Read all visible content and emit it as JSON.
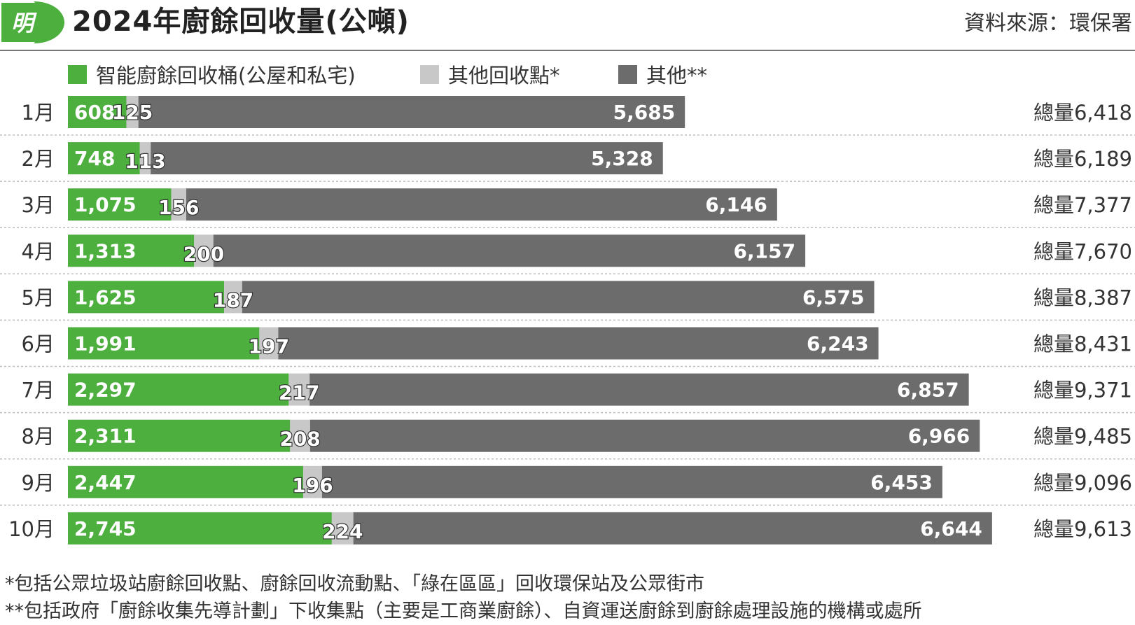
{
  "title": "2024年廚餘回收量(公噸)",
  "source": "資料來源：環保署",
  "logo_text": "明",
  "total_prefix": "總量",
  "colors": {
    "smart_bins": "#4caf3e",
    "other_points": "#c8c8c8",
    "others": "#6c6c6c",
    "divider": "#bdbdbd",
    "brand": "#4caf3e"
  },
  "chart_data": {
    "type": "bar",
    "orientation": "horizontal",
    "stacked": true,
    "title": "2024年廚餘回收量(公噸)",
    "categories": [
      "1月",
      "2月",
      "3月",
      "4月",
      "5月",
      "6月",
      "7月",
      "8月",
      "9月",
      "10月"
    ],
    "series": [
      {
        "name": "智能廚餘回收桶(公屋和私宅)",
        "values": [
          608,
          748,
          1075,
          1313,
          1625,
          1991,
          2297,
          2311,
          2447,
          2745
        ]
      },
      {
        "name": "其他回收點*",
        "values": [
          125,
          113,
          156,
          200,
          187,
          197,
          217,
          208,
          196,
          224
        ]
      },
      {
        "name": "其他**",
        "values": [
          5685,
          5328,
          6146,
          6157,
          6575,
          6243,
          6857,
          6966,
          6453,
          6644
        ]
      }
    ],
    "totals": [
      "6,418",
      "6,189",
      "7,377",
      "7,670",
      "8,387",
      "8,431",
      "9,371",
      "9,485",
      "9,096",
      "9,613"
    ],
    "labels": [
      [
        "608",
        "125",
        "5,685"
      ],
      [
        "748",
        "113",
        "5,328"
      ],
      [
        "1,075",
        "156",
        "6,146"
      ],
      [
        "1,313",
        "200",
        "6,157"
      ],
      [
        "1,625",
        "187",
        "6,575"
      ],
      [
        "1,991",
        "197",
        "6,243"
      ],
      [
        "2,297",
        "217",
        "6,857"
      ],
      [
        "2,311",
        "208",
        "6,966"
      ],
      [
        "2,447",
        "196",
        "6,453"
      ],
      [
        "2,745",
        "224",
        "6,644"
      ]
    ],
    "grid": false,
    "legend_position": "top-left"
  },
  "footnotes": [
    "*包括公眾垃圾站廚餘回收點、廚餘回收流動點、「綠在區區」回收環保站及公眾街市",
    "**包括政府「廚餘收集先導計劃」下收集點（主要是工商業廚餘）、自資運送廚餘到廚餘處理設施的機構或處所"
  ]
}
